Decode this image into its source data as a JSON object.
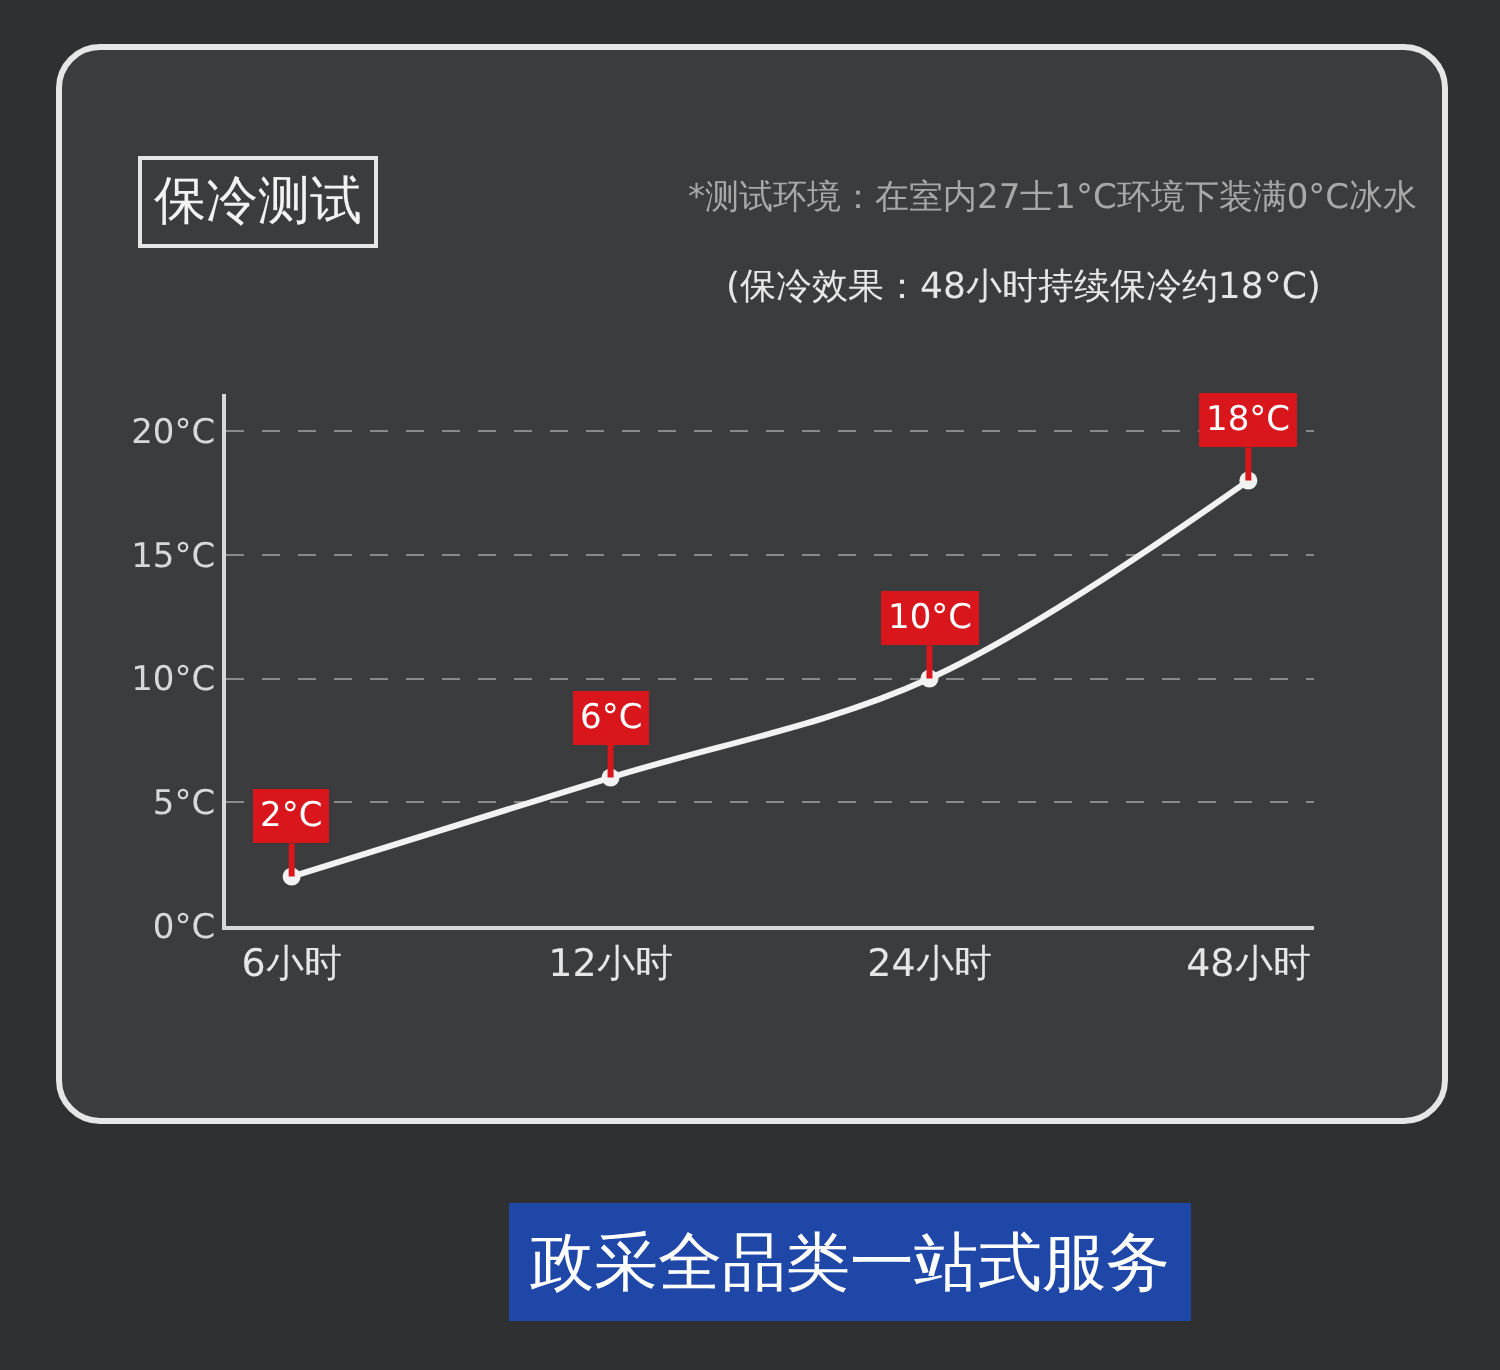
{
  "chart_data": {
    "type": "line",
    "title": "保冷测试",
    "subtitle": "*测试环境：在室内27士1°C环境下装满0°C冰水",
    "annotations": [
      "(保冷效果：48小时持续保冷约18°C)",
      "政采全品类一站式服务"
    ],
    "categories": [
      "6小时",
      "12小时",
      "24小时",
      "48小时"
    ],
    "series": [
      {
        "color": "#f2f2f2",
        "values": [
          2,
          6,
          10,
          18
        ],
        "value_labels": [
          "2°C",
          "6°C",
          "10°C",
          "18°C"
        ]
      }
    ],
    "ylim": [
      0,
      21.5
    ],
    "yticks": [
      {
        "value": 0,
        "label": "0°C"
      },
      {
        "value": 5,
        "label": "5°C"
      },
      {
        "value": 10,
        "label": "10°C"
      },
      {
        "value": 15,
        "label": "15°C"
      },
      {
        "value": 20,
        "label": "20°C"
      }
    ],
    "grid": "y",
    "marker": "circle",
    "line_style": "solid"
  }
}
